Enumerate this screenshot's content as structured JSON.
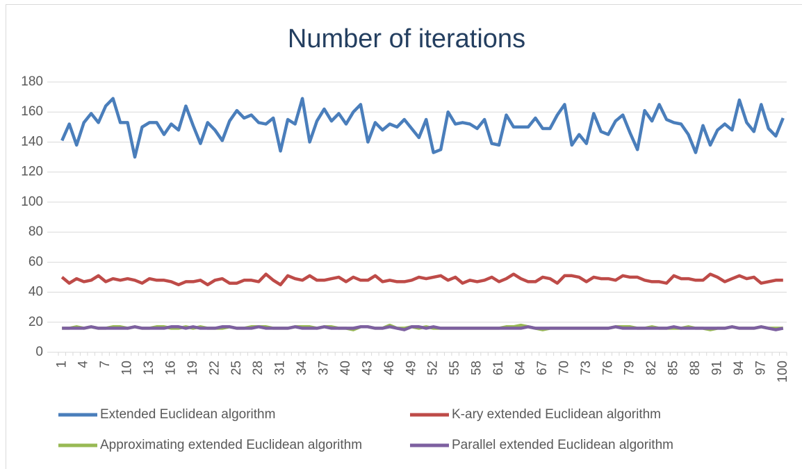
{
  "chart_data": {
    "type": "line",
    "title": "Number of iterations",
    "categories": [
      1,
      null,
      null,
      4,
      null,
      null,
      7,
      null,
      null,
      10,
      null,
      null,
      13,
      null,
      null,
      16,
      null,
      null,
      19,
      null,
      null,
      22,
      null,
      null,
      25,
      null,
      null,
      28,
      null,
      null,
      31,
      null,
      null,
      34,
      null,
      null,
      37,
      null,
      null,
      40,
      null,
      null,
      43,
      null,
      null,
      46,
      null,
      null,
      49,
      null,
      null,
      52,
      null,
      null,
      55,
      null,
      null,
      58,
      null,
      null,
      61,
      null,
      null,
      64,
      null,
      null,
      67,
      null,
      null,
      70,
      null,
      null,
      73,
      null,
      null,
      76,
      null,
      null,
      79,
      null,
      null,
      82,
      null,
      null,
      85,
      null,
      null,
      88,
      null,
      null,
      91,
      null,
      null,
      94,
      null,
      null,
      97,
      null,
      null,
      100
    ],
    "ylim": [
      0,
      180
    ],
    "yticks": [
      0,
      20,
      40,
      60,
      80,
      100,
      120,
      140,
      160,
      180
    ],
    "grid": true,
    "legend": "bottom",
    "series": [
      {
        "name": "Extended Euclidean algorithm",
        "color": "#4a7ebb",
        "values": [
          141,
          152,
          138,
          153,
          159,
          153,
          164,
          169,
          153,
          153,
          130,
          150,
          153,
          153,
          145,
          152,
          148,
          164,
          151,
          139,
          153,
          148,
          141,
          154,
          161,
          156,
          158,
          153,
          152,
          156,
          134,
          155,
          152,
          169,
          140,
          154,
          162,
          154,
          159,
          152,
          160,
          165,
          140,
          153,
          148,
          152,
          150,
          155,
          149,
          143,
          155,
          133,
          135,
          160,
          152,
          153,
          152,
          149,
          155,
          139,
          138,
          158,
          150,
          150,
          150,
          156,
          149,
          149,
          158,
          165,
          138,
          145,
          139,
          159,
          147,
          145,
          154,
          158,
          146,
          135,
          161,
          154,
          165,
          155,
          153,
          152,
          145,
          133,
          151,
          138,
          148,
          152,
          148,
          168,
          153,
          147,
          165,
          149,
          144,
          156
        ]
      },
      {
        "name": "K-ary extended Euclidean algorithm",
        "color": "#be4b48",
        "values": [
          50,
          46,
          49,
          47,
          48,
          51,
          47,
          49,
          48,
          49,
          48,
          46,
          49,
          48,
          48,
          47,
          45,
          47,
          47,
          48,
          45,
          48,
          49,
          46,
          46,
          48,
          48,
          47,
          52,
          48,
          45,
          51,
          49,
          48,
          51,
          48,
          48,
          49,
          50,
          47,
          50,
          48,
          48,
          51,
          47,
          48,
          47,
          47,
          48,
          50,
          49,
          50,
          51,
          48,
          50,
          46,
          48,
          47,
          48,
          50,
          47,
          49,
          52,
          49,
          47,
          47,
          50,
          49,
          46,
          51,
          51,
          50,
          47,
          50,
          49,
          49,
          48,
          51,
          50,
          50,
          48,
          47,
          47,
          46,
          51,
          49,
          49,
          48,
          48,
          52,
          50,
          47,
          49,
          51,
          49,
          50,
          46,
          47,
          48,
          48
        ]
      },
      {
        "name": "Approximating extended Euclidean algorithm",
        "color": "#98b954",
        "values": [
          16,
          16,
          17,
          16,
          17,
          16,
          16,
          17,
          17,
          16,
          17,
          16,
          16,
          17,
          17,
          16,
          16,
          17,
          16,
          17,
          16,
          16,
          16,
          17,
          16,
          16,
          17,
          17,
          17,
          16,
          16,
          16,
          17,
          17,
          17,
          16,
          17,
          17,
          16,
          16,
          15,
          17,
          17,
          16,
          16,
          18,
          16,
          16,
          17,
          16,
          17,
          16,
          16,
          16,
          16,
          16,
          16,
          16,
          16,
          16,
          16,
          17,
          17,
          18,
          17,
          16,
          15,
          16,
          16,
          16,
          16,
          16,
          16,
          16,
          16,
          16,
          17,
          17,
          17,
          16,
          16,
          17,
          16,
          16,
          16,
          16,
          17,
          16,
          16,
          15,
          16,
          16,
          17,
          16,
          16,
          16,
          17,
          16,
          16,
          16
        ]
      },
      {
        "name": "Parallel extended Euclidean algorithm",
        "color": "#7d60a0",
        "values": [
          16,
          16,
          16,
          16,
          17,
          16,
          16,
          16,
          16,
          16,
          17,
          16,
          16,
          16,
          16,
          17,
          17,
          16,
          17,
          16,
          16,
          16,
          17,
          17,
          16,
          16,
          16,
          17,
          16,
          16,
          16,
          16,
          17,
          16,
          16,
          16,
          17,
          16,
          16,
          16,
          16,
          17,
          17,
          16,
          16,
          17,
          16,
          15,
          17,
          17,
          16,
          17,
          16,
          16,
          16,
          16,
          16,
          16,
          16,
          16,
          16,
          16,
          16,
          16,
          17,
          16,
          16,
          16,
          16,
          16,
          16,
          16,
          16,
          16,
          16,
          16,
          17,
          16,
          16,
          16,
          16,
          16,
          16,
          16,
          17,
          16,
          16,
          16,
          16,
          16,
          16,
          16,
          17,
          16,
          16,
          16,
          17,
          16,
          15,
          16
        ]
      }
    ]
  }
}
